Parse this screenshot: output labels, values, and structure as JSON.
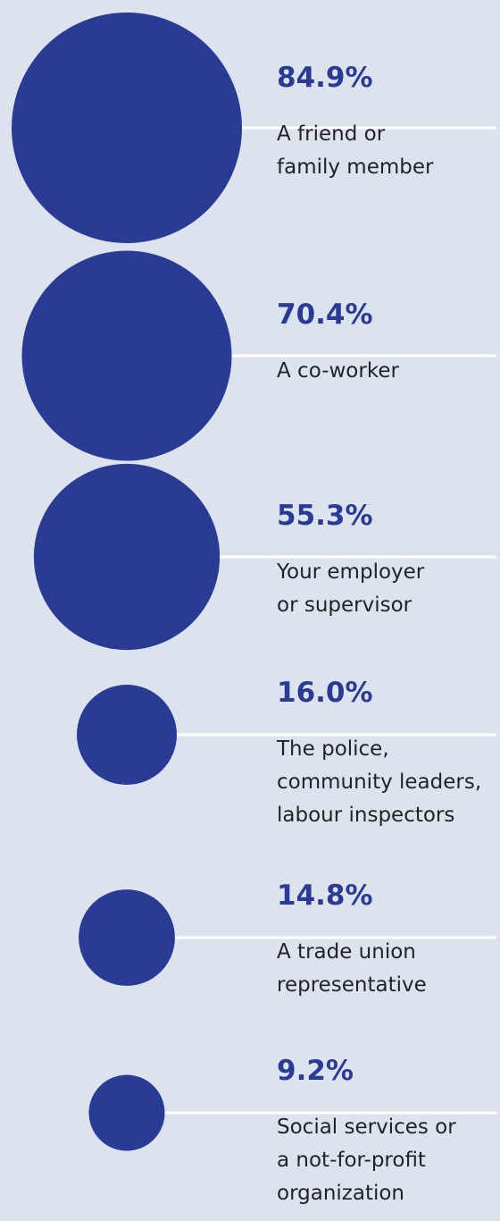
{
  "colors": {
    "background": "#dce3ec",
    "accent": "#2a3b96",
    "line": "#ffffff",
    "text": "#1f2326"
  },
  "chart_data": {
    "type": "bubble",
    "title": "",
    "items": [
      {
        "value": 84.9,
        "value_label": "84.9%",
        "label": "A friend or\nfamily member"
      },
      {
        "value": 70.4,
        "value_label": "70.4%",
        "label": "A co-worker"
      },
      {
        "value": 55.3,
        "value_label": "55.3%",
        "label": "Your employer\nor supervisor"
      },
      {
        "value": 16.0,
        "value_label": "16.0%",
        "label": "The police,\ncommunity leaders,\nlabour inspectors"
      },
      {
        "value": 14.8,
        "value_label": "14.8%",
        "label": "A trade union\nrepresentative"
      },
      {
        "value": 9.2,
        "value_label": "9.2%",
        "label": "Social services or\na not-for-profit\norganization"
      }
    ]
  }
}
